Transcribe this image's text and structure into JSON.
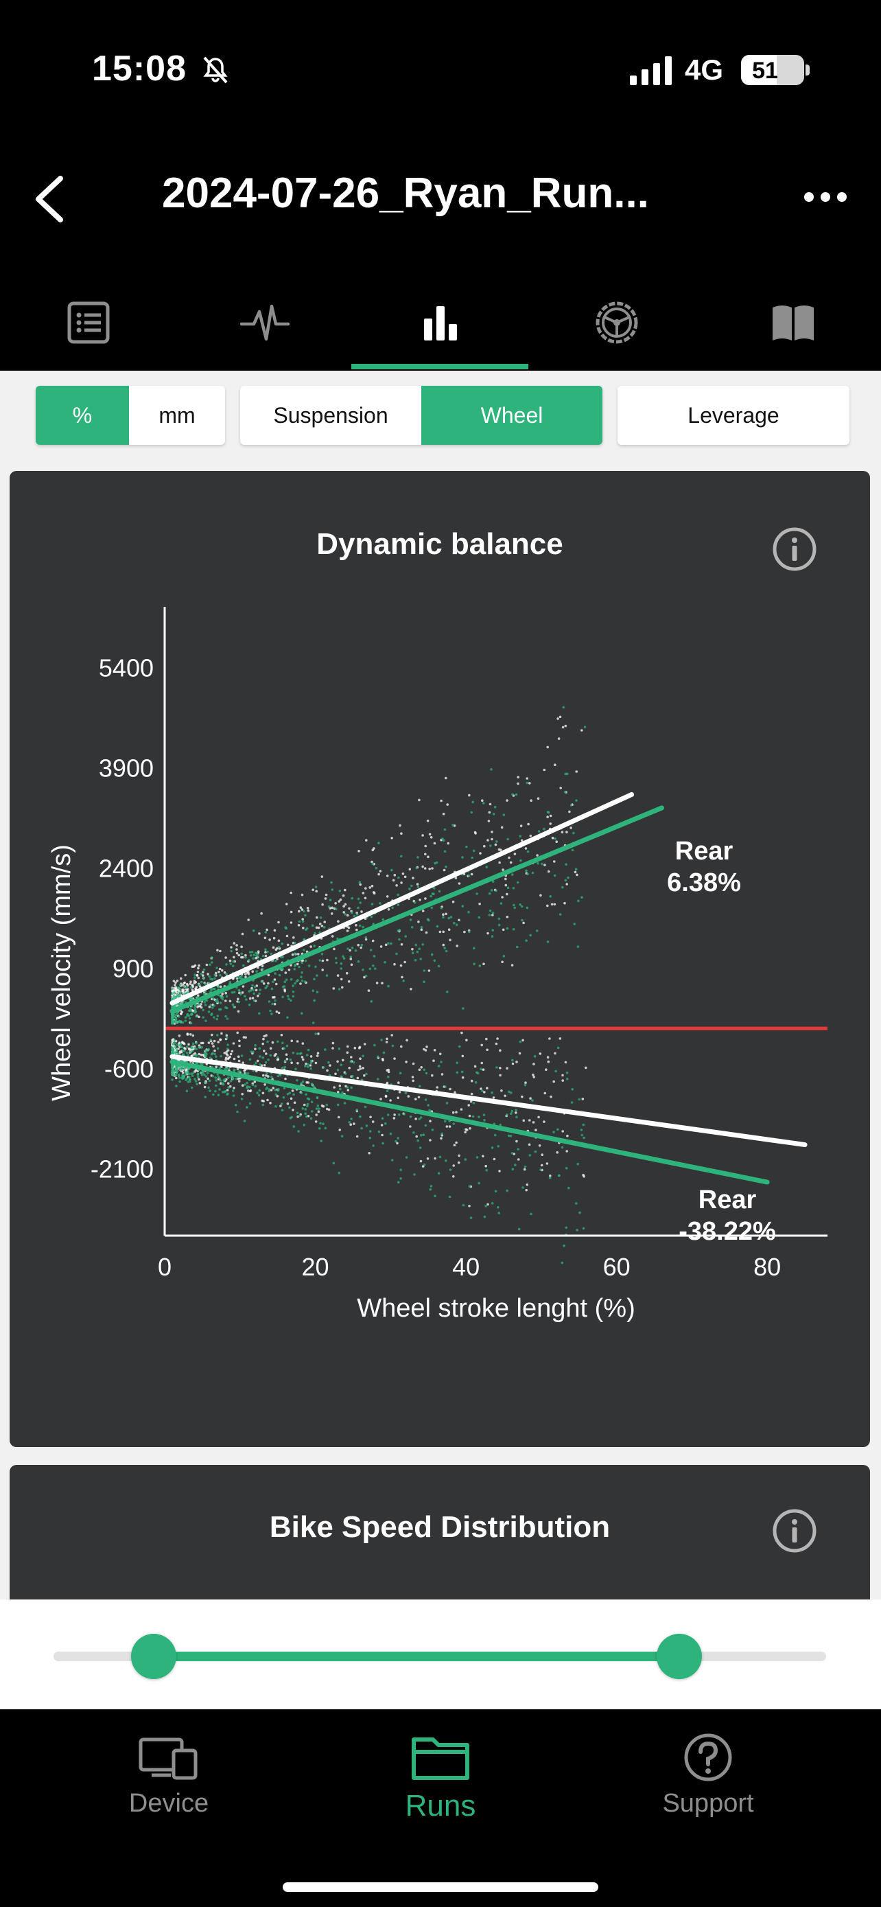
{
  "status_bar": {
    "time": "15:08",
    "network": "4G",
    "battery": "51"
  },
  "header": {
    "title": "2024-07-26_Ryan_Run..."
  },
  "tabs": [
    {
      "icon": "list-icon"
    },
    {
      "icon": "pulse-icon"
    },
    {
      "icon": "bar-chart-icon",
      "active": true
    },
    {
      "icon": "steering-wheel-icon"
    },
    {
      "icon": "book-icon"
    }
  ],
  "controls": {
    "unit": {
      "options": [
        "%",
        "mm"
      ],
      "selected": "%"
    },
    "mode": {
      "options": [
        "Suspension",
        "Wheel"
      ],
      "selected": "Wheel"
    },
    "leverage_label": "Leverage"
  },
  "colors": {
    "accent": "#2db37b",
    "card_bg": "#333436",
    "zero_line": "#e23b3b",
    "front_series": "#ffffff",
    "rear_series": "#2db37b"
  },
  "dynamic_balance": {
    "title": "Dynamic balance",
    "annotations": [
      {
        "label": "Rear",
        "value": "6.38%"
      },
      {
        "label": "Rear",
        "value": "-38.22%"
      }
    ]
  },
  "chart_data": {
    "type": "scatter",
    "title": "Dynamic balance",
    "xlabel": "Wheel stroke lenght (%)",
    "ylabel": "Wheel velocity (mm/s)",
    "xlim": [
      0,
      88
    ],
    "ylim": [
      -3100,
      6000
    ],
    "x_ticks": [
      0,
      20,
      40,
      60,
      80
    ],
    "y_ticks": [
      5400,
      3900,
      2400,
      900,
      -600,
      -2100
    ],
    "zero_line": {
      "y": 0
    },
    "grid": false,
    "series": [
      {
        "color": "#ffffff",
        "trend_compression": {
          "x": [
            1,
            62
          ],
          "y": [
            380,
            3500
          ]
        },
        "trend_rebound": {
          "x": [
            1,
            85
          ],
          "y": [
            -420,
            -1740
          ]
        }
      },
      {
        "color": "#2db37b",
        "trend_compression": {
          "x": [
            1,
            66
          ],
          "y": [
            260,
            3300
          ]
        },
        "trend_rebound": {
          "x": [
            1,
            80
          ],
          "y": [
            -500,
            -2300
          ]
        }
      }
    ]
  },
  "speed_distribution": {
    "title": "Bike Speed Distribution"
  },
  "range_slider": {
    "start": 0.13,
    "end": 0.81
  },
  "bottom_nav": [
    {
      "label": "Device",
      "icon": "device-icon"
    },
    {
      "label": "Runs",
      "icon": "folder-icon",
      "active": true
    },
    {
      "label": "Support",
      "icon": "question-icon"
    }
  ]
}
